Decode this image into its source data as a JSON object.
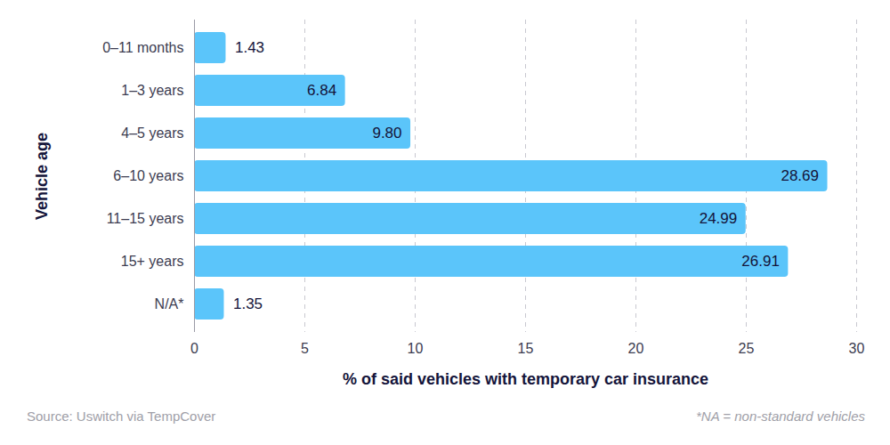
{
  "chart_data": {
    "type": "bar",
    "orientation": "horizontal",
    "categories": [
      "0–11 months",
      "1–3 years",
      "4–5 years",
      "6–10 years",
      "11–15 years",
      "15+ years",
      "N/A*"
    ],
    "values": [
      1.43,
      6.84,
      9.8,
      28.69,
      24.99,
      26.91,
      1.35
    ],
    "value_labels": [
      "1.43",
      "6.84",
      "9.80",
      "28.69",
      "24.99",
      "26.91",
      "1.35"
    ],
    "color": "#5bc5fa",
    "xlabel": "% of said vehicles with temporary car insurance",
    "ylabel": "Vehicle age",
    "xlim": [
      0,
      30
    ],
    "xticks": [
      0,
      5,
      10,
      15,
      20,
      25,
      30
    ],
    "grid": true,
    "data_labels": true,
    "annotations": [
      "Source: Uswitch via TempCover",
      "*NA = non-standard vehicles"
    ]
  }
}
